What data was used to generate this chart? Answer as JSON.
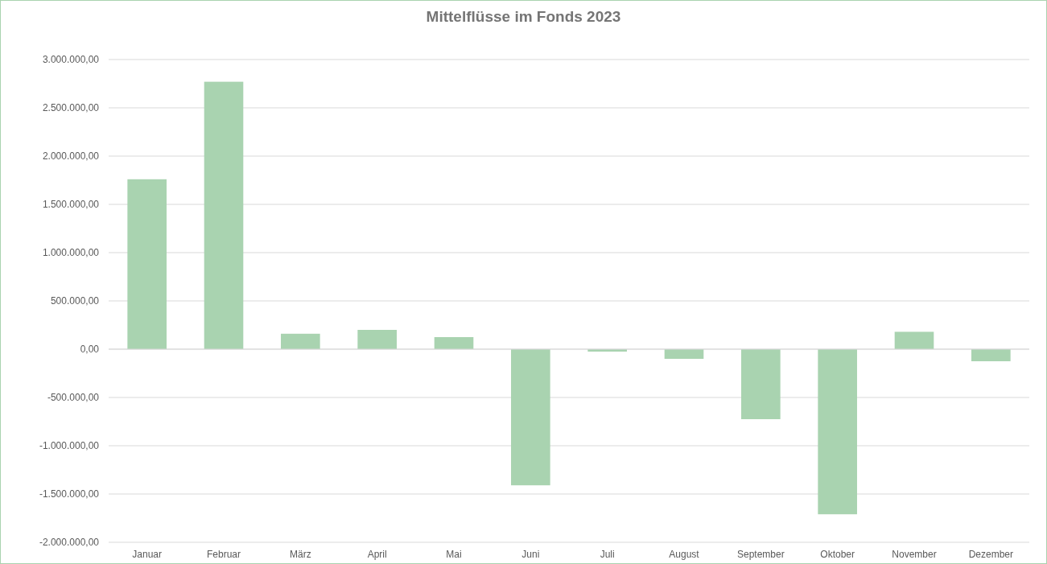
{
  "chart_data": {
    "type": "bar",
    "title": "Mittelflüsse im Fonds 2023",
    "categories": [
      "Januar",
      "Februar",
      "März",
      "April",
      "Mai",
      "Juni",
      "Juli",
      "August",
      "September",
      "Oktober",
      "November",
      "Dezember"
    ],
    "values": [
      1760000,
      2770000,
      160000,
      200000,
      125000,
      -1410000,
      -25000,
      -100000,
      -725000,
      -1710000,
      180000,
      -125000
    ],
    "color": "#a9d3b0",
    "ylim": [
      -2000000,
      3000000
    ],
    "yticks": [
      {
        "value": -2000000,
        "label": "-2.000.000,00"
      },
      {
        "value": -1500000,
        "label": "-1.500.000,00"
      },
      {
        "value": -1000000,
        "label": "-1.000.000,00"
      },
      {
        "value": -500000,
        "label": "-500.000,00"
      },
      {
        "value": 0,
        "label": "0,00"
      },
      {
        "value": 500000,
        "label": "500.000,00"
      },
      {
        "value": 1000000,
        "label": "1.000.000,00"
      },
      {
        "value": 1500000,
        "label": "1.500.000,00"
      },
      {
        "value": 2000000,
        "label": "2.000.000,00"
      },
      {
        "value": 2500000,
        "label": "2.500.000,00"
      },
      {
        "value": 3000000,
        "label": "3.000.000,00"
      }
    ],
    "grid": "y"
  }
}
